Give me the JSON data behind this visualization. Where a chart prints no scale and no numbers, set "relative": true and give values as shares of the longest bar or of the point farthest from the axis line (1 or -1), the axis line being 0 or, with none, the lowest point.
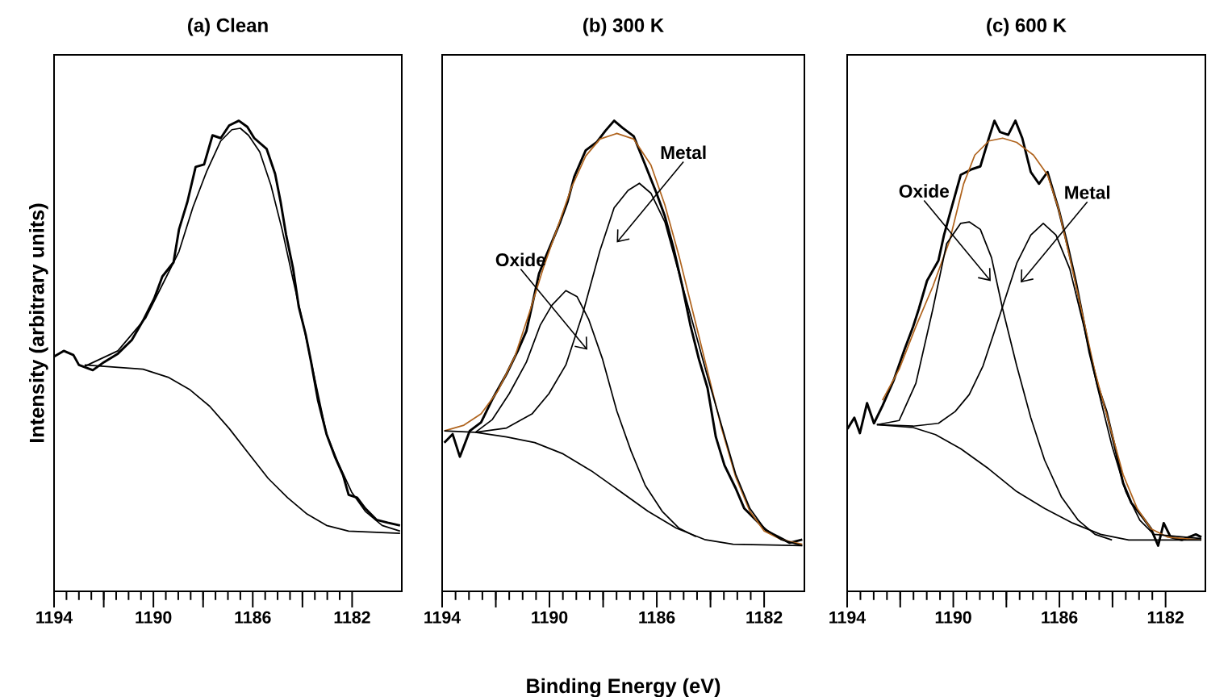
{
  "chart_data": [
    {
      "type": "line",
      "title": "(a) Clean",
      "ylabel": "Intensity (arbitrary units)",
      "relative": true,
      "xlim": [
        1194,
        1180
      ],
      "xticks": [
        1194,
        1190,
        1186,
        1182
      ],
      "series": [
        {
          "color": "#000000",
          "x": [
            1194.0,
            1193.61,
            1193.22,
            1193.0,
            1192.44,
            1191.99,
            1191.43,
            1190.87,
            1190.42,
            1189.97,
            1189.64,
            1189.19,
            1188.97,
            1188.63,
            1188.3,
            1187.96,
            1187.62,
            1187.29,
            1186.95,
            1186.56,
            1186.22,
            1185.94,
            1185.44,
            1185.1,
            1184.88,
            1184.66,
            1184.38,
            1184.15,
            1183.87,
            1183.65,
            1183.37,
            1183.03,
            1182.7,
            1182.36,
            1182.14,
            1181.8,
            1181.47,
            1181.02,
            1180.57,
            1180.07
          ],
          "values": [
            0.499,
            0.511,
            0.502,
            0.481,
            0.47,
            0.487,
            0.505,
            0.534,
            0.575,
            0.622,
            0.669,
            0.699,
            0.769,
            0.828,
            0.902,
            0.907,
            0.969,
            0.963,
            0.99,
            1.0,
            0.987,
            0.963,
            0.94,
            0.887,
            0.828,
            0.758,
            0.687,
            0.605,
            0.546,
            0.487,
            0.405,
            0.334,
            0.287,
            0.246,
            0.205,
            0.199,
            0.176,
            0.152,
            0.146,
            0.14
          ]
        },
        {
          "color": "#000000",
          "x": [
            1192.77,
            1191.43,
            1190.31,
            1189.53,
            1188.97,
            1188.41,
            1187.85,
            1187.29,
            1186.84,
            1186.5,
            1186.17,
            1185.72,
            1185.27,
            1184.82,
            1184.38,
            1183.93,
            1183.48,
            1183.03,
            1182.58,
            1182.02,
            1181.47,
            1180.79,
            1180.07
          ],
          "values": [
            0.478,
            0.511,
            0.581,
            0.663,
            0.722,
            0.816,
            0.893,
            0.957,
            0.981,
            0.984,
            0.969,
            0.934,
            0.863,
            0.769,
            0.663,
            0.558,
            0.446,
            0.334,
            0.275,
            0.211,
            0.17,
            0.14,
            0.128
          ]
        },
        {
          "color": "#000000",
          "x": [
            1192.77,
            1190.42,
            1189.41,
            1188.52,
            1187.73,
            1186.95,
            1186.17,
            1185.38,
            1184.6,
            1183.81,
            1183.03,
            1182.14,
            1180.07
          ],
          "values": [
            0.481,
            0.472,
            0.455,
            0.428,
            0.393,
            0.346,
            0.293,
            0.24,
            0.199,
            0.164,
            0.14,
            0.128,
            0.123
          ]
        }
      ]
    },
    {
      "type": "line",
      "title": "(b) 300 K",
      "xlabel": "Binding Energy (eV)",
      "relative": true,
      "xlim": [
        1194,
        1180.5
      ],
      "xticks": [
        1194,
        1190,
        1186,
        1182
      ],
      "annotations": [
        "Oxide",
        "Metal"
      ],
      "series": [
        {
          "color": "#000000",
          "x": [
            1193.92,
            1193.61,
            1193.34,
            1192.97,
            1192.55,
            1192.13,
            1191.6,
            1191.18,
            1190.86,
            1190.6,
            1190.39,
            1190.13,
            1189.91,
            1189.6,
            1189.33,
            1189.07,
            1188.65,
            1188.23,
            1187.91,
            1187.59,
            1187.28,
            1186.86,
            1186.43,
            1186.01,
            1185.7,
            1185.38,
            1185.06,
            1184.75,
            1184.43,
            1184.11,
            1183.8,
            1183.48,
            1183.06,
            1182.74,
            1182.32,
            1181.9,
            1181.48,
            1181.05,
            1180.58
          ],
          "values": [
            0.316,
            0.334,
            0.286,
            0.341,
            0.359,
            0.408,
            0.462,
            0.511,
            0.553,
            0.62,
            0.675,
            0.712,
            0.742,
            0.785,
            0.827,
            0.882,
            0.937,
            0.955,
            0.979,
            1.0,
            0.985,
            0.967,
            0.906,
            0.846,
            0.797,
            0.73,
            0.651,
            0.566,
            0.493,
            0.432,
            0.328,
            0.268,
            0.219,
            0.176,
            0.152,
            0.128,
            0.116,
            0.103,
            0.11
          ]
        },
        {
          "color": "#b0641e",
          "x": [
            1193.92,
            1193.19,
            1192.55,
            1191.92,
            1191.29,
            1190.76,
            1190.23,
            1189.7,
            1189.18,
            1188.65,
            1188.12,
            1187.49,
            1186.86,
            1186.22,
            1185.7,
            1185.17,
            1184.64,
            1184.11,
            1183.59,
            1183.06,
            1182.53,
            1182.0,
            1181.37,
            1180.58
          ],
          "values": [
            0.341,
            0.353,
            0.377,
            0.426,
            0.499,
            0.59,
            0.687,
            0.773,
            0.858,
            0.925,
            0.961,
            0.973,
            0.961,
            0.906,
            0.821,
            0.712,
            0.59,
            0.468,
            0.347,
            0.243,
            0.17,
            0.128,
            0.11,
            0.1
          ]
        },
        {
          "color": "#000000",
          "x": [
            1192.76,
            1192.13,
            1191.5,
            1190.86,
            1190.34,
            1189.91,
            1189.39,
            1188.97,
            1188.54,
            1188.02,
            1187.49,
            1186.96,
            1186.43,
            1185.8,
            1185.17,
            1184.54
          ],
          "values": [
            0.338,
            0.365,
            0.42,
            0.487,
            0.566,
            0.608,
            0.639,
            0.626,
            0.578,
            0.493,
            0.383,
            0.298,
            0.225,
            0.17,
            0.134,
            0.116
          ]
        },
        {
          "color": "#000000",
          "x": [
            1192.76,
            1191.6,
            1190.65,
            1190.02,
            1189.39,
            1188.76,
            1188.12,
            1187.59,
            1187.07,
            1186.65,
            1186.22,
            1185.7,
            1185.17,
            1184.64,
            1184.11,
            1183.59,
            1183.06,
            1182.53,
            1182.0,
            1181.37,
            1180.58
          ],
          "values": [
            0.338,
            0.347,
            0.377,
            0.42,
            0.481,
            0.59,
            0.724,
            0.815,
            0.852,
            0.867,
            0.846,
            0.785,
            0.675,
            0.566,
            0.456,
            0.353,
            0.249,
            0.176,
            0.134,
            0.11,
            0.097
          ]
        },
        {
          "color": "#000000",
          "x": [
            1193.92,
            1192.76,
            1191.6,
            1190.55,
            1189.49,
            1188.44,
            1187.38,
            1186.33,
            1185.27,
            1184.22,
            1183.16,
            1180.58
          ],
          "values": [
            0.341,
            0.338,
            0.328,
            0.316,
            0.292,
            0.256,
            0.213,
            0.17,
            0.134,
            0.11,
            0.1,
            0.097
          ]
        }
      ]
    },
    {
      "type": "line",
      "title": "(c) 600 K",
      "relative": true,
      "xlim": [
        1194,
        1180.5
      ],
      "xticks": [
        1194,
        1190,
        1186,
        1182
      ],
      "annotations": [
        "Oxide",
        "Metal"
      ],
      "series": [
        {
          "color": "#000000",
          "x": [
            1193.99,
            1193.73,
            1193.52,
            1193.25,
            1192.99,
            1192.67,
            1192.25,
            1191.83,
            1191.51,
            1191.3,
            1190.99,
            1190.56,
            1190.35,
            1190.14,
            1189.72,
            1189.3,
            1188.98,
            1188.66,
            1188.45,
            1188.24,
            1187.93,
            1187.66,
            1187.4,
            1187.08,
            1186.77,
            1186.45,
            1186.03,
            1185.71,
            1185.39,
            1185.18,
            1184.87,
            1184.55,
            1184.23,
            1183.92,
            1183.6,
            1183.29,
            1182.86,
            1182.55,
            1182.28,
            1182.07,
            1181.81,
            1181.39,
            1180.86,
            1180.65
          ],
          "values": [
            0.345,
            0.369,
            0.336,
            0.4,
            0.357,
            0.394,
            0.448,
            0.515,
            0.563,
            0.6,
            0.66,
            0.703,
            0.757,
            0.8,
            0.885,
            0.897,
            0.903,
            0.963,
            1.0,
            0.976,
            0.97,
            1.0,
            0.963,
            0.891,
            0.866,
            0.891,
            0.812,
            0.739,
            0.66,
            0.6,
            0.509,
            0.436,
            0.382,
            0.309,
            0.23,
            0.188,
            0.157,
            0.133,
            0.097,
            0.145,
            0.115,
            0.109,
            0.121,
            0.115
          ]
        },
        {
          "color": "#b0641e",
          "x": [
            1192.67,
            1192.04,
            1191.41,
            1190.77,
            1190.14,
            1189.61,
            1189.19,
            1188.66,
            1188.14,
            1187.61,
            1186.98,
            1186.45,
            1186.03,
            1185.61,
            1185.18,
            1184.66,
            1184.13,
            1183.6,
            1183.07,
            1182.55,
            1181.91,
            1180.65
          ],
          "values": [
            0.406,
            0.472,
            0.563,
            0.648,
            0.745,
            0.866,
            0.927,
            0.957,
            0.963,
            0.954,
            0.927,
            0.885,
            0.812,
            0.709,
            0.6,
            0.466,
            0.357,
            0.248,
            0.176,
            0.133,
            0.115,
            0.109
          ]
        },
        {
          "color": "#000000",
          "x": [
            1192.88,
            1192.04,
            1191.41,
            1190.77,
            1190.25,
            1189.72,
            1189.4,
            1188.98,
            1188.56,
            1188.14,
            1187.61,
            1187.08,
            1186.56,
            1185.92,
            1185.29,
            1184.66,
            1184.02
          ],
          "values": [
            0.354,
            0.363,
            0.442,
            0.6,
            0.739,
            0.782,
            0.785,
            0.769,
            0.709,
            0.6,
            0.479,
            0.369,
            0.279,
            0.2,
            0.151,
            0.121,
            0.109
          ]
        },
        {
          "color": "#000000",
          "x": [
            1192.88,
            1191.51,
            1190.56,
            1189.93,
            1189.4,
            1188.88,
            1188.24,
            1187.61,
            1187.08,
            1186.61,
            1186.13,
            1185.61,
            1185.08,
            1184.55,
            1184.02,
            1183.5,
            1182.97,
            1182.44,
            1180.65
          ],
          "values": [
            0.354,
            0.351,
            0.357,
            0.382,
            0.418,
            0.479,
            0.588,
            0.697,
            0.757,
            0.782,
            0.757,
            0.685,
            0.563,
            0.43,
            0.309,
            0.212,
            0.151,
            0.121,
            0.112
          ]
        },
        {
          "color": "#000000",
          "x": [
            1192.88,
            1191.51,
            1190.67,
            1189.72,
            1188.66,
            1187.61,
            1186.56,
            1185.5,
            1184.45,
            1183.39,
            1180.65
          ],
          "values": [
            0.354,
            0.348,
            0.333,
            0.303,
            0.26,
            0.212,
            0.176,
            0.145,
            0.121,
            0.109,
            0.109
          ]
        }
      ]
    }
  ]
}
